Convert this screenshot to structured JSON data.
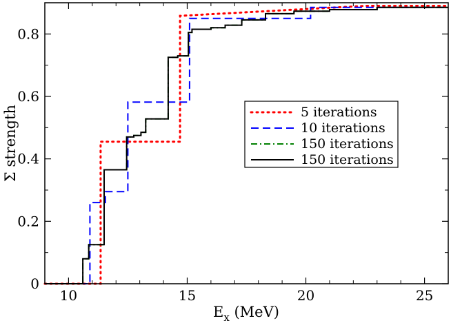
{
  "chart_data": {
    "type": "line",
    "step": true,
    "title": "",
    "xlabel_main": "E",
    "xlabel_sub": "x",
    "xlabel_unit": " (MeV)",
    "ylabel": "Σ strength",
    "xlim": [
      9,
      26
    ],
    "ylim": [
      0,
      0.9
    ],
    "xticks": [
      10,
      15,
      20,
      25
    ],
    "yticks": [
      0,
      0.2,
      0.4,
      0.6,
      0.8
    ],
    "ytick_labels": [
      "0",
      "0.2",
      "0.4",
      "0.6",
      "0.8"
    ],
    "legend_position": "middle-right",
    "series": [
      {
        "name": "5 iterations",
        "color": "#ff0000",
        "dash": "dotted",
        "x": [
          9.0,
          11.35,
          11.35,
          11.6,
          14.7,
          14.7,
          22.5,
          26.0
        ],
        "y": [
          0.0,
          0.0,
          0.455,
          0.455,
          0.455,
          0.858,
          0.89,
          0.89
        ]
      },
      {
        "name": "10 iterations",
        "color": "#0000ff",
        "dash": "dashed",
        "x": [
          9.0,
          10.9,
          10.9,
          11.55,
          11.55,
          12.5,
          12.5,
          15.1,
          15.1,
          20.2,
          20.2,
          26.0
        ],
        "y": [
          0.0,
          0.0,
          0.26,
          0.26,
          0.295,
          0.295,
          0.582,
          0.582,
          0.85,
          0.85,
          0.885,
          0.885
        ]
      },
      {
        "name": "150 iterations",
        "color": "#008000",
        "dash": "dashdot",
        "x": [
          9.0,
          10.6,
          10.6,
          10.85,
          10.85,
          11.5,
          11.5,
          12.45,
          12.45,
          12.75,
          12.75,
          13.05,
          13.05,
          13.25,
          13.25,
          14.2,
          14.2,
          14.6,
          14.6,
          15.05,
          15.05,
          15.2,
          15.2,
          16.0,
          16.0,
          16.6,
          16.6,
          17.3,
          17.3,
          18.3,
          18.3,
          19.5,
          19.5,
          21.0,
          21.0,
          23.0,
          23.0,
          26.0
        ],
        "y": [
          0.0,
          0.0,
          0.08,
          0.08,
          0.125,
          0.125,
          0.365,
          0.365,
          0.47,
          0.47,
          0.475,
          0.475,
          0.485,
          0.485,
          0.528,
          0.528,
          0.725,
          0.725,
          0.73,
          0.73,
          0.805,
          0.805,
          0.815,
          0.815,
          0.82,
          0.82,
          0.828,
          0.828,
          0.845,
          0.845,
          0.865,
          0.865,
          0.873,
          0.873,
          0.878,
          0.878,
          0.885,
          0.885
        ]
      },
      {
        "name": "150 iterations",
        "color": "#000000",
        "dash": "solid",
        "x": [
          9.0,
          10.6,
          10.6,
          10.85,
          10.85,
          11.5,
          11.5,
          12.45,
          12.45,
          12.75,
          12.75,
          13.05,
          13.05,
          13.25,
          13.25,
          14.2,
          14.2,
          14.6,
          14.6,
          15.05,
          15.05,
          15.2,
          15.2,
          16.0,
          16.0,
          16.6,
          16.6,
          17.3,
          17.3,
          18.3,
          18.3,
          19.5,
          19.5,
          21.0,
          21.0,
          23.0,
          23.0,
          26.0
        ],
        "y": [
          0.0,
          0.0,
          0.08,
          0.08,
          0.125,
          0.125,
          0.365,
          0.365,
          0.47,
          0.47,
          0.475,
          0.475,
          0.485,
          0.485,
          0.528,
          0.528,
          0.725,
          0.725,
          0.73,
          0.73,
          0.805,
          0.805,
          0.815,
          0.815,
          0.82,
          0.82,
          0.828,
          0.828,
          0.845,
          0.845,
          0.865,
          0.865,
          0.873,
          0.873,
          0.878,
          0.878,
          0.885,
          0.885
        ]
      }
    ]
  }
}
